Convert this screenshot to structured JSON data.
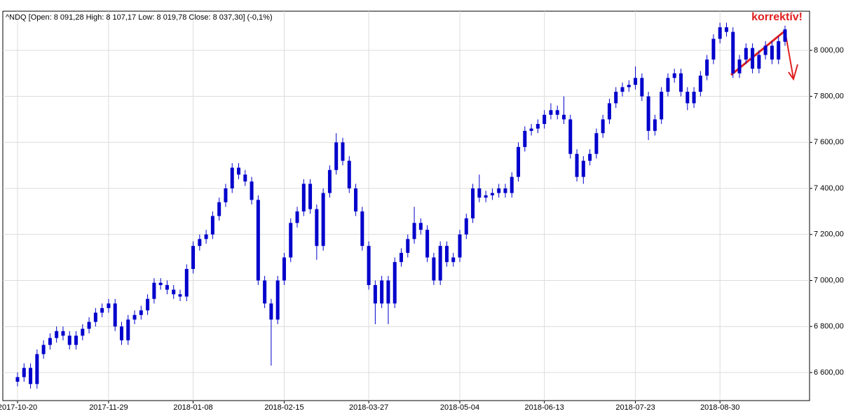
{
  "chart_data": {
    "type": "candlestick",
    "header": "^NDQ [Open: 8 091,28  High: 8 107,17  Low: 8 019,78  Close: 8 037,30] (-0,1%)",
    "annotation": "korrektív!",
    "color": "#0000cc",
    "annotation_color": "#e02020",
    "grid": true,
    "categories": [
      "2017-10-20",
      null,
      null,
      null,
      null,
      null,
      null,
      null,
      null,
      null,
      null,
      null,
      null,
      null,
      "2017-11-29",
      null,
      null,
      null,
      null,
      null,
      null,
      null,
      null,
      null,
      null,
      null,
      null,
      "2018-01-08",
      null,
      null,
      null,
      null,
      null,
      null,
      null,
      null,
      null,
      null,
      null,
      null,
      null,
      "2018-02-15",
      null,
      null,
      null,
      null,
      null,
      null,
      null,
      null,
      null,
      null,
      null,
      null,
      "2018-03-27",
      null,
      null,
      null,
      null,
      null,
      null,
      null,
      null,
      null,
      null,
      null,
      null,
      null,
      "2018-05-04",
      null,
      null,
      null,
      null,
      null,
      null,
      null,
      null,
      null,
      null,
      null,
      null,
      "2018-06-13",
      null,
      null,
      null,
      null,
      null,
      null,
      null,
      null,
      null,
      null,
      null,
      null,
      null,
      "2018-07-23",
      null,
      null,
      null,
      null,
      null,
      null,
      null,
      null,
      null,
      null,
      null,
      null,
      "2018-08-30",
      null,
      null,
      null,
      null,
      null,
      null,
      null,
      null,
      null,
      null
    ],
    "open": [
      6560,
      6580,
      6620,
      6550,
      6680,
      6720,
      6750,
      6780,
      6760,
      6720,
      6760,
      6790,
      6820,
      6860,
      6880,
      6900,
      6800,
      6740,
      6830,
      6850,
      6870,
      6920,
      6990,
      6980,
      6960,
      6940,
      6930,
      7050,
      7150,
      7180,
      7200,
      7280,
      7340,
      7400,
      7490,
      7460,
      7430,
      7350,
      7000,
      6900,
      6830,
      7000,
      7100,
      7250,
      7300,
      7420,
      7310,
      7150,
      7380,
      7480,
      7600,
      7520,
      7400,
      7300,
      7150,
      6980,
      6900,
      7000,
      6900,
      7080,
      7120,
      7180,
      7250,
      7220,
      7100,
      7000,
      7150,
      7080,
      7100,
      7200,
      7270,
      7400,
      7360,
      7370,
      7380,
      7400,
      7380,
      7450,
      7580,
      7650,
      7660,
      7680,
      7720,
      7740,
      7720,
      7700,
      7550,
      7450,
      7520,
      7550,
      7640,
      7700,
      7770,
      7820,
      7840,
      7850,
      7880,
      7800,
      7650,
      7700,
      7820,
      7880,
      7900,
      7820,
      7770,
      7820,
      7890,
      7960,
      8050,
      8100,
      8080,
      7900,
      7960,
      8010,
      7920,
      7980,
      8020,
      7960,
      8091.28
    ],
    "high": [
      6600,
      6640,
      6640,
      6700,
      6740,
      6770,
      6800,
      6800,
      6780,
      6780,
      6810,
      6840,
      6880,
      6900,
      6920,
      6920,
      6820,
      6850,
      6870,
      6890,
      6940,
      7010,
      7010,
      7000,
      6980,
      6960,
      7070,
      7170,
      7200,
      7220,
      7300,
      7360,
      7420,
      7510,
      7510,
      7480,
      7450,
      7370,
      7020,
      6920,
      7020,
      7120,
      7270,
      7320,
      7440,
      7440,
      7330,
      7400,
      7500,
      7640,
      7620,
      7540,
      7420,
      7320,
      7170,
      7000,
      7020,
      7020,
      7100,
      7140,
      7200,
      7320,
      7270,
      7240,
      7120,
      7170,
      7170,
      7120,
      7220,
      7290,
      7420,
      7460,
      7390,
      7400,
      7420,
      7420,
      7470,
      7600,
      7670,
      7680,
      7700,
      7740,
      7770,
      7760,
      7800,
      7720,
      7570,
      7540,
      7570,
      7660,
      7720,
      7790,
      7840,
      7860,
      7870,
      7930,
      7900,
      7820,
      7720,
      7840,
      7900,
      7920,
      7920,
      7840,
      7840,
      7910,
      7980,
      8070,
      8120,
      8120,
      8100,
      7980,
      8030,
      8030,
      8000,
      8040,
      8040,
      8060,
      8107.17
    ],
    "low": [
      6540,
      6560,
      6530,
      6530,
      6660,
      6700,
      6730,
      6740,
      6700,
      6700,
      6740,
      6770,
      6800,
      6840,
      6860,
      6780,
      6720,
      6720,
      6810,
      6830,
      6850,
      6900,
      6960,
      6940,
      6920,
      6910,
      6910,
      7030,
      7130,
      7160,
      7180,
      7260,
      7320,
      7380,
      7440,
      7410,
      7330,
      6980,
      6880,
      6630,
      6810,
      6980,
      7080,
      7230,
      7280,
      7290,
      7090,
      7130,
      7360,
      7460,
      7500,
      7380,
      7280,
      7130,
      6960,
      6810,
      6880,
      6810,
      6880,
      7060,
      7100,
      7160,
      7200,
      7080,
      6980,
      6980,
      7060,
      7060,
      7080,
      7180,
      7250,
      7340,
      7340,
      7350,
      7360,
      7360,
      7360,
      7430,
      7560,
      7630,
      7640,
      7660,
      7700,
      7700,
      7680,
      7530,
      7430,
      7420,
      7500,
      7530,
      7620,
      7680,
      7750,
      7800,
      7820,
      7830,
      7780,
      7610,
      7630,
      7680,
      7800,
      7860,
      7800,
      7740,
      7750,
      7800,
      7870,
      7940,
      8030,
      8060,
      7880,
      7880,
      7940,
      7900,
      7900,
      7960,
      7940,
      7940,
      8019.78
    ],
    "close": [
      6580,
      6620,
      6550,
      6680,
      6720,
      6750,
      6780,
      6760,
      6720,
      6760,
      6790,
      6820,
      6860,
      6880,
      6900,
      6800,
      6740,
      6830,
      6850,
      6870,
      6920,
      6990,
      6980,
      6960,
      6940,
      6930,
      7050,
      7150,
      7180,
      7200,
      7280,
      7340,
      7400,
      7490,
      7460,
      7430,
      7350,
      7000,
      6900,
      6830,
      7000,
      7100,
      7250,
      7300,
      7420,
      7310,
      7150,
      7380,
      7480,
      7600,
      7520,
      7400,
      7300,
      7150,
      6980,
      6900,
      7000,
      6900,
      7080,
      7120,
      7180,
      7250,
      7220,
      7100,
      7000,
      7150,
      7080,
      7100,
      7200,
      7270,
      7400,
      7360,
      7370,
      7380,
      7400,
      7380,
      7450,
      7580,
      7650,
      7660,
      7680,
      7720,
      7740,
      7720,
      7700,
      7550,
      7450,
      7520,
      7550,
      7640,
      7700,
      7770,
      7820,
      7840,
      7850,
      7880,
      7800,
      7650,
      7700,
      7820,
      7880,
      7900,
      7820,
      7770,
      7820,
      7890,
      7960,
      8050,
      8100,
      8080,
      7900,
      7960,
      8010,
      7920,
      7980,
      8020,
      7960,
      8040,
      8037.3
    ],
    "ylim": [
      6478,
      8170
    ],
    "yticks": [
      {
        "value": 6600,
        "label": "6 600,00"
      },
      {
        "value": 6800,
        "label": "6 800,00"
      },
      {
        "value": 7000,
        "label": "7 000,00"
      },
      {
        "value": 7200,
        "label": "7 200,00"
      },
      {
        "value": 7400,
        "label": "7 400,00"
      },
      {
        "value": 7600,
        "label": "7 600,00"
      },
      {
        "value": 7800,
        "label": "7 800,00"
      },
      {
        "value": 8000,
        "label": "8 000,00"
      }
    ]
  }
}
